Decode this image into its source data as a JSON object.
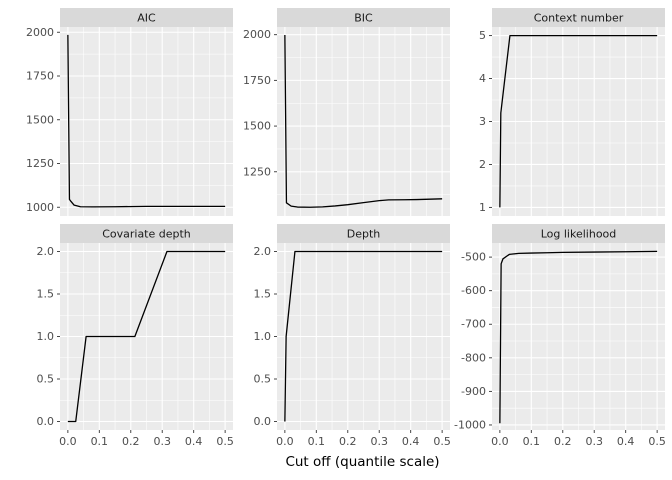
{
  "chart_data": {
    "type": "line",
    "title": "",
    "xlabel": "Cut off (quantile scale)",
    "ylabel": "",
    "xlim": [
      -0.025,
      0.525
    ],
    "grid": "on",
    "legend": "none",
    "x_ticks": [
      {
        "v": 0.0,
        "label": "0.0"
      },
      {
        "v": 0.1,
        "label": "0.1"
      },
      {
        "v": 0.2,
        "label": "0.2"
      },
      {
        "v": 0.3,
        "label": "0.3"
      },
      {
        "v": 0.4,
        "label": "0.4"
      },
      {
        "v": 0.5,
        "label": "0.5"
      }
    ],
    "colors": {
      "panel_bg": "#EBEBEB",
      "strip_bg": "#D9D9D9",
      "grid": "#FFFFFF",
      "line": "#000000",
      "tick_text": "#4D4D4D",
      "strip_text": "#1A1A1A",
      "tick_mark": "#333333"
    },
    "panels": [
      {
        "id": "aic",
        "title": "AIC",
        "ylim": [
          950,
          2030
        ],
        "y_ticks": [
          {
            "v": 1000,
            "label": "1000"
          },
          {
            "v": 1250,
            "label": "1250"
          },
          {
            "v": 1500,
            "label": "1500"
          },
          {
            "v": 1750,
            "label": "1750"
          },
          {
            "v": 2000,
            "label": "2000"
          }
        ],
        "points": [
          [
            0,
            1985
          ],
          [
            0.005,
            1045
          ],
          [
            0.01,
            1033
          ],
          [
            0.02,
            1012
          ],
          [
            0.04,
            1003
          ],
          [
            0.08,
            1002
          ],
          [
            0.15,
            1003
          ],
          [
            0.25,
            1005
          ],
          [
            0.35,
            1005
          ],
          [
            0.45,
            1005
          ],
          [
            0.5,
            1005
          ]
        ]
      },
      {
        "id": "bic",
        "title": "BIC",
        "ylim": [
          1008,
          2042
        ],
        "y_ticks": [
          {
            "v": 1250,
            "label": "1250"
          },
          {
            "v": 1500,
            "label": "1500"
          },
          {
            "v": 1750,
            "label": "1750"
          },
          {
            "v": 2000,
            "label": "2000"
          }
        ],
        "points": [
          [
            0,
            1998
          ],
          [
            0.005,
            1080
          ],
          [
            0.02,
            1062
          ],
          [
            0.04,
            1057
          ],
          [
            0.08,
            1056
          ],
          [
            0.12,
            1058
          ],
          [
            0.16,
            1063
          ],
          [
            0.2,
            1070
          ],
          [
            0.25,
            1081
          ],
          [
            0.3,
            1092
          ],
          [
            0.33,
            1096
          ],
          [
            0.38,
            1097
          ],
          [
            0.42,
            1098
          ],
          [
            0.46,
            1100
          ],
          [
            0.5,
            1102
          ]
        ]
      },
      {
        "id": "context-number",
        "title": "Context number",
        "ylim": [
          0.8,
          5.2
        ],
        "y_ticks": [
          {
            "v": 1,
            "label": "1"
          },
          {
            "v": 2,
            "label": "2"
          },
          {
            "v": 3,
            "label": "3"
          },
          {
            "v": 4,
            "label": "4"
          },
          {
            "v": 5,
            "label": "5"
          }
        ],
        "points": [
          [
            0,
            1
          ],
          [
            0.003,
            3.2
          ],
          [
            0.032,
            5
          ],
          [
            0.25,
            5
          ],
          [
            0.5,
            5
          ]
        ]
      },
      {
        "id": "covariate-depth",
        "title": "Covariate depth",
        "ylim": [
          -0.1,
          2.1
        ],
        "y_ticks": [
          {
            "v": 0.0,
            "label": "0.0"
          },
          {
            "v": 0.5,
            "label": "0.5"
          },
          {
            "v": 1.0,
            "label": "1.0"
          },
          {
            "v": 1.5,
            "label": "1.5"
          },
          {
            "v": 2.0,
            "label": "2.0"
          }
        ],
        "points": [
          [
            0,
            0
          ],
          [
            0.025,
            0
          ],
          [
            0.058,
            1
          ],
          [
            0.213,
            1
          ],
          [
            0.315,
            2
          ],
          [
            0.5,
            2
          ]
        ]
      },
      {
        "id": "depth",
        "title": "Depth",
        "ylim": [
          -0.1,
          2.1
        ],
        "y_ticks": [
          {
            "v": 0.0,
            "label": "0.0"
          },
          {
            "v": 0.5,
            "label": "0.5"
          },
          {
            "v": 1.0,
            "label": "1.0"
          },
          {
            "v": 1.5,
            "label": "1.5"
          },
          {
            "v": 2.0,
            "label": "2.0"
          }
        ],
        "points": [
          [
            0,
            0
          ],
          [
            0.004,
            1
          ],
          [
            0.032,
            2
          ],
          [
            0.25,
            2
          ],
          [
            0.5,
            2
          ]
        ]
      },
      {
        "id": "log-likelihood",
        "title": "Log likelihood",
        "ylim": [
          -1015,
          -458
        ],
        "y_ticks": [
          {
            "v": -1000,
            "label": "-1000"
          },
          {
            "v": -900,
            "label": "-900"
          },
          {
            "v": -800,
            "label": "-800"
          },
          {
            "v": -700,
            "label": "-700"
          },
          {
            "v": -600,
            "label": "-600"
          },
          {
            "v": -500,
            "label": "-500"
          }
        ],
        "points": [
          [
            0,
            -995
          ],
          [
            0.004,
            -520
          ],
          [
            0.01,
            -505
          ],
          [
            0.03,
            -492
          ],
          [
            0.06,
            -489
          ],
          [
            0.1,
            -488
          ],
          [
            0.15,
            -487
          ],
          [
            0.2,
            -486
          ],
          [
            0.3,
            -485
          ],
          [
            0.4,
            -484
          ],
          [
            0.5,
            -483
          ]
        ]
      }
    ]
  }
}
